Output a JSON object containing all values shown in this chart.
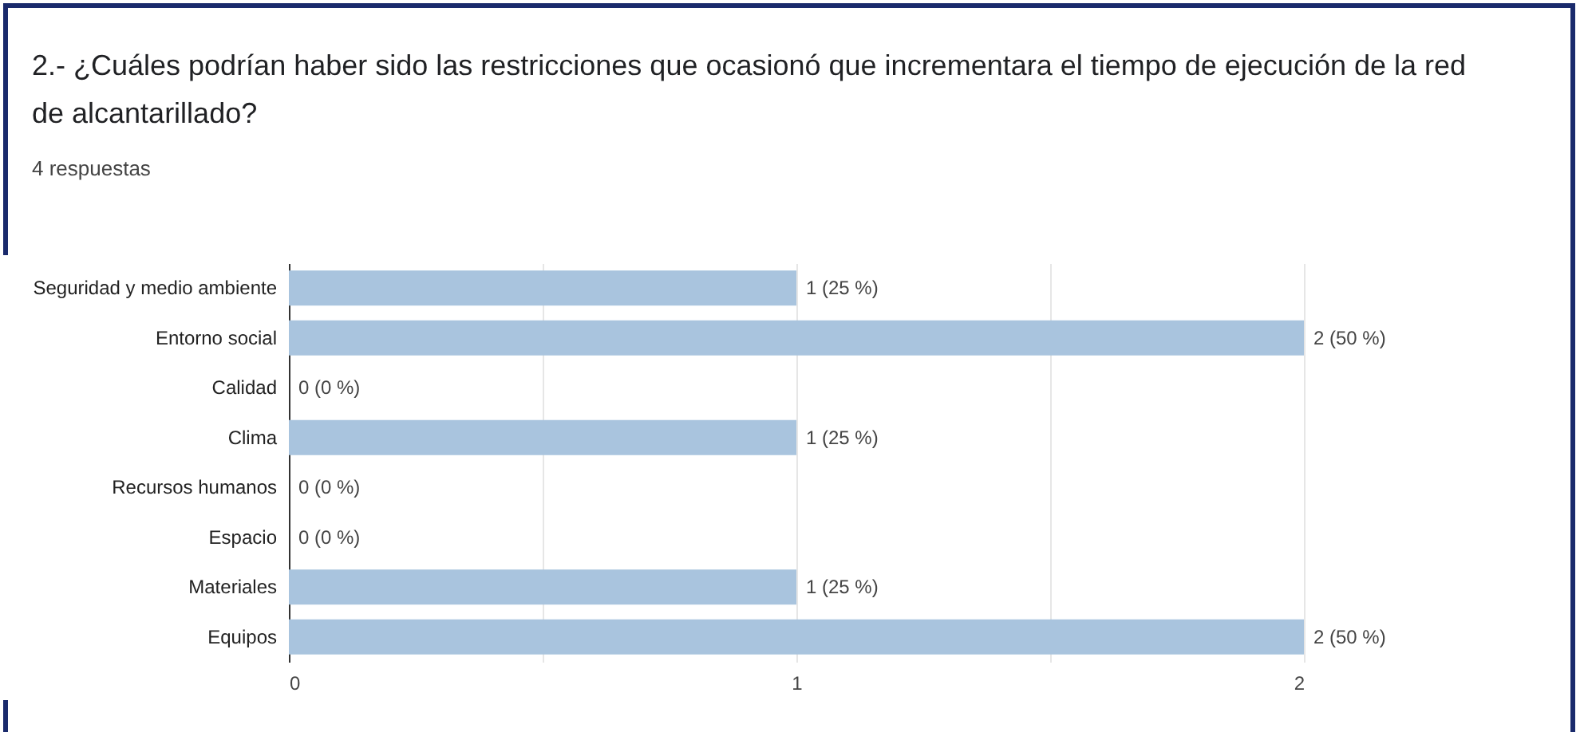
{
  "chart_data": {
    "type": "bar",
    "orientation": "horizontal",
    "title": "2.- ¿Cuáles podrían haber sido las restricciones que ocasionó que incrementara el tiempo de ejecución de la red de alcantarillado?",
    "subtitle": "4 respuestas",
    "categories": [
      "Seguridad y medio ambiente",
      "Entorno social",
      "Calidad",
      "Clima",
      "Recursos humanos",
      "Espacio",
      "Materiales",
      "Equipos"
    ],
    "values": [
      1,
      2,
      0,
      1,
      0,
      0,
      1,
      2
    ],
    "value_labels": [
      "1 (25 %)",
      "2 (50 %)",
      "0 (0 %)",
      "1 (25 %)",
      "0 (0 %)",
      "0 (0 %)",
      "1 (25 %)",
      "2 (50 %)"
    ],
    "color": "#a9c4de",
    "xlim": [
      0,
      2
    ],
    "xticks": [
      0,
      {
        "value": 0.5,
        "label": null
      },
      1,
      {
        "value": 1.5,
        "label": null
      },
      2
    ],
    "grid": "x"
  }
}
